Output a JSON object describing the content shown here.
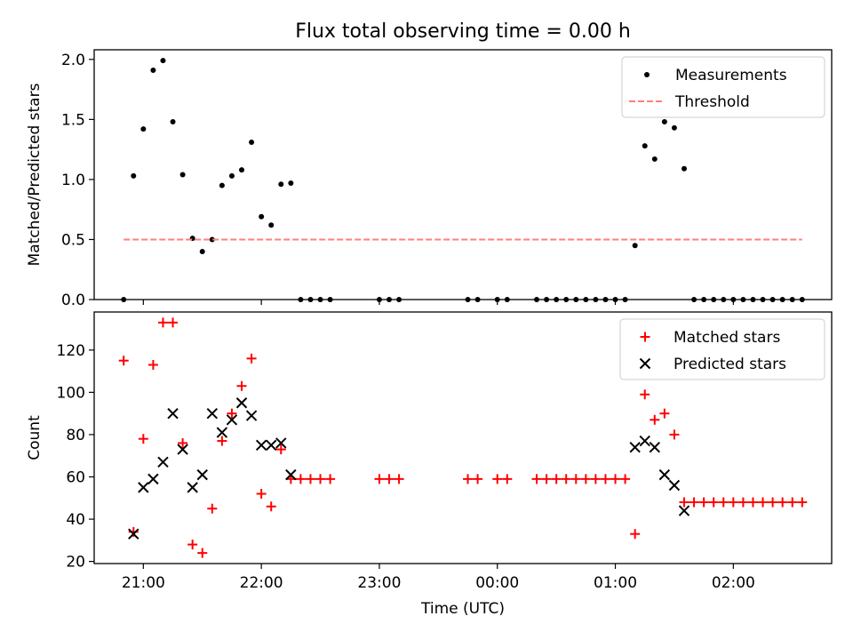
{
  "figure": {
    "title": "Flux total observing time = 0.00 h"
  },
  "chart_data": [
    {
      "type": "scatter",
      "title": "Flux total observing time = 0.00 h",
      "xlabel": "",
      "ylabel": "Matched/Predicted stars",
      "xlim": [
        "20:35",
        "02:50"
      ],
      "ylim": [
        0,
        2.08
      ],
      "yticks": [
        0.0,
        0.5,
        1.0,
        1.5,
        2.0
      ],
      "ytick_labels": [
        "0.0",
        "0.5",
        "1.0",
        "1.5",
        "2.0"
      ],
      "grid": false,
      "legend": {
        "placement": "top-right",
        "entries": [
          "Measurements",
          "Threshold"
        ]
      },
      "series": [
        {
          "name": "Measurements",
          "marker": "dot",
          "color": "#000000",
          "points": [
            [
              "20:50",
              0.0
            ],
            [
              "20:55",
              1.03
            ],
            [
              "21:00",
              1.42
            ],
            [
              "21:05",
              1.91
            ],
            [
              "21:10",
              1.99
            ],
            [
              "21:15",
              1.48
            ],
            [
              "21:20",
              1.04
            ],
            [
              "21:25",
              0.51
            ],
            [
              "21:30",
              0.4
            ],
            [
              "21:35",
              0.5
            ],
            [
              "21:40",
              0.95
            ],
            [
              "21:45",
              1.03
            ],
            [
              "21:50",
              1.08
            ],
            [
              "21:55",
              1.31
            ],
            [
              "22:00",
              0.69
            ],
            [
              "22:05",
              0.62
            ],
            [
              "22:10",
              0.96
            ],
            [
              "22:15",
              0.97
            ],
            [
              "22:20",
              0.0
            ],
            [
              "22:25",
              0.0
            ],
            [
              "22:30",
              0.0
            ],
            [
              "22:35",
              0.0
            ],
            [
              "23:00",
              0.0
            ],
            [
              "23:05",
              0.0
            ],
            [
              "23:10",
              0.0
            ],
            [
              "23:45",
              0.0
            ],
            [
              "23:50",
              0.0
            ],
            [
              "00:00",
              0.0
            ],
            [
              "00:05",
              0.0
            ],
            [
              "00:20",
              0.0
            ],
            [
              "00:25",
              0.0
            ],
            [
              "00:30",
              0.0
            ],
            [
              "00:35",
              0.0
            ],
            [
              "00:40",
              0.0
            ],
            [
              "00:45",
              0.0
            ],
            [
              "00:50",
              0.0
            ],
            [
              "00:55",
              0.0
            ],
            [
              "01:00",
              0.0
            ],
            [
              "01:05",
              0.0
            ],
            [
              "01:10",
              0.45
            ],
            [
              "01:15",
              1.28
            ],
            [
              "01:20",
              1.17
            ],
            [
              "01:25",
              1.48
            ],
            [
              "01:30",
              1.43
            ],
            [
              "01:35",
              1.09
            ],
            [
              "01:40",
              0.0
            ],
            [
              "01:45",
              0.0
            ],
            [
              "01:50",
              0.0
            ],
            [
              "01:55",
              0.0
            ],
            [
              "02:00",
              0.0
            ],
            [
              "02:05",
              0.0
            ],
            [
              "02:10",
              0.0
            ],
            [
              "02:15",
              0.0
            ],
            [
              "02:20",
              0.0
            ],
            [
              "02:25",
              0.0
            ],
            [
              "02:30",
              0.0
            ],
            [
              "02:35",
              0.0
            ]
          ]
        },
        {
          "name": "Threshold",
          "style": "dashed",
          "color": "#ff7f7f",
          "points": [
            [
              "20:50",
              0.5
            ],
            [
              "02:35",
              0.5
            ]
          ]
        }
      ]
    },
    {
      "type": "scatter",
      "title": "",
      "xlabel": "Time (UTC)",
      "ylabel": "Count",
      "xlim": [
        "20:35",
        "02:50"
      ],
      "ylim": [
        19,
        138
      ],
      "xticks": [
        "21:00",
        "22:00",
        "23:00",
        "00:00",
        "01:00",
        "02:00"
      ],
      "yticks": [
        20,
        40,
        60,
        80,
        100,
        120
      ],
      "ytick_labels": [
        "20",
        "40",
        "60",
        "80",
        "100",
        "120"
      ],
      "grid": false,
      "legend": {
        "placement": "top-right",
        "entries": [
          "Matched stars",
          "Predicted stars"
        ]
      },
      "series": [
        {
          "name": "Matched stars",
          "marker": "plus",
          "color": "#ff0000",
          "points": [
            [
              "20:50",
              115
            ],
            [
              "20:55",
              34
            ],
            [
              "21:00",
              78
            ],
            [
              "21:05",
              113
            ],
            [
              "21:10",
              133
            ],
            [
              "21:15",
              133
            ],
            [
              "21:20",
              76
            ],
            [
              "21:25",
              28
            ],
            [
              "21:30",
              24
            ],
            [
              "21:35",
              45
            ],
            [
              "21:40",
              77
            ],
            [
              "21:45",
              90
            ],
            [
              "21:50",
              103
            ],
            [
              "21:55",
              116
            ],
            [
              "22:00",
              52
            ],
            [
              "22:05",
              46
            ],
            [
              "22:10",
              73
            ],
            [
              "22:15",
              59
            ],
            [
              "22:20",
              59
            ],
            [
              "22:25",
              59
            ],
            [
              "22:30",
              59
            ],
            [
              "22:35",
              59
            ],
            [
              "23:00",
              59
            ],
            [
              "23:05",
              59
            ],
            [
              "23:10",
              59
            ],
            [
              "23:45",
              59
            ],
            [
              "23:50",
              59
            ],
            [
              "00:00",
              59
            ],
            [
              "00:05",
              59
            ],
            [
              "00:20",
              59
            ],
            [
              "00:25",
              59
            ],
            [
              "00:30",
              59
            ],
            [
              "00:35",
              59
            ],
            [
              "00:40",
              59
            ],
            [
              "00:45",
              59
            ],
            [
              "00:50",
              59
            ],
            [
              "00:55",
              59
            ],
            [
              "01:00",
              59
            ],
            [
              "01:05",
              59
            ],
            [
              "01:10",
              33
            ],
            [
              "01:15",
              99
            ],
            [
              "01:20",
              87
            ],
            [
              "01:25",
              90
            ],
            [
              "01:30",
              80
            ],
            [
              "01:35",
              48
            ],
            [
              "01:40",
              48
            ],
            [
              "01:45",
              48
            ],
            [
              "01:50",
              48
            ],
            [
              "01:55",
              48
            ],
            [
              "02:00",
              48
            ],
            [
              "02:05",
              48
            ],
            [
              "02:10",
              48
            ],
            [
              "02:15",
              48
            ],
            [
              "02:20",
              48
            ],
            [
              "02:25",
              48
            ],
            [
              "02:30",
              48
            ],
            [
              "02:35",
              48
            ]
          ]
        },
        {
          "name": "Predicted stars",
          "marker": "x",
          "color": "#000000",
          "points": [
            [
              "20:55",
              33
            ],
            [
              "21:00",
              55
            ],
            [
              "21:05",
              59
            ],
            [
              "21:10",
              67
            ],
            [
              "21:15",
              90
            ],
            [
              "21:20",
              73
            ],
            [
              "21:25",
              55
            ],
            [
              "21:30",
              61
            ],
            [
              "21:35",
              90
            ],
            [
              "21:40",
              81
            ],
            [
              "21:45",
              87
            ],
            [
              "21:50",
              95
            ],
            [
              "21:55",
              89
            ],
            [
              "22:00",
              75
            ],
            [
              "22:05",
              75
            ],
            [
              "22:10",
              76
            ],
            [
              "22:15",
              61
            ],
            [
              "01:10",
              74
            ],
            [
              "01:15",
              77
            ],
            [
              "01:20",
              74
            ],
            [
              "01:25",
              61
            ],
            [
              "01:30",
              56
            ],
            [
              "01:35",
              44
            ]
          ]
        }
      ]
    }
  ]
}
